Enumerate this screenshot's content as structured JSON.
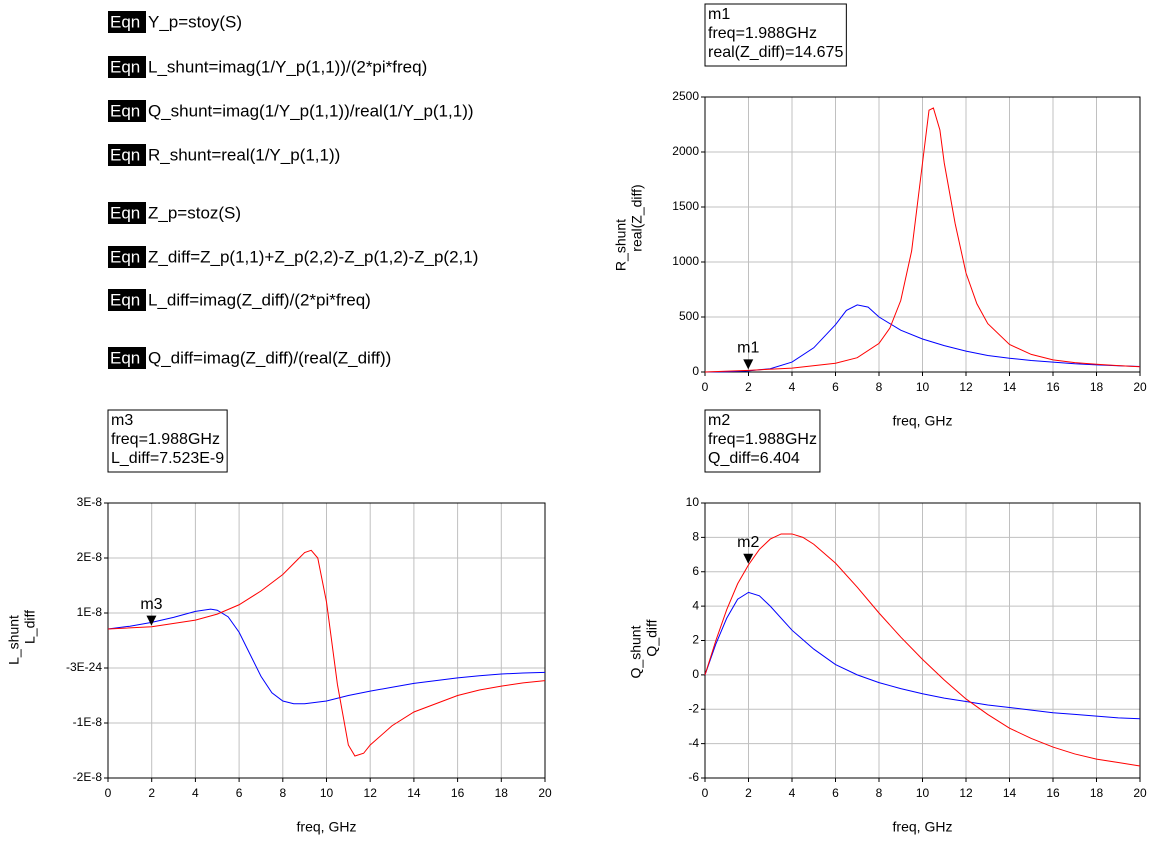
{
  "equations": [
    {
      "tag": "Eqn",
      "text": "Y_p=stoy(S)"
    },
    {
      "tag": "Eqn",
      "text": "L_shunt=imag(1/Y_p(1,1))/(2*pi*freq)"
    },
    {
      "tag": "Eqn",
      "text": "Q_shunt=imag(1/Y_p(1,1))/real(1/Y_p(1,1))"
    },
    {
      "tag": "Eqn",
      "text": "R_shunt=real(1/Y_p(1,1))"
    },
    {
      "tag": "Eqn",
      "text": "Z_p=stoz(S)"
    },
    {
      "tag": "Eqn",
      "text": "Z_diff=Z_p(1,1)+Z_p(2,2)-Z_p(1,2)-Z_p(2,1)"
    },
    {
      "tag": "Eqn",
      "text": "L_diff=imag(Z_diff)/(2*pi*freq)"
    },
    {
      "tag": "Eqn",
      "text": "Q_diff=imag(Z_diff)/(real(Z_diff))"
    }
  ],
  "chart_data": [
    {
      "type": "line",
      "x_label": "freq, GHz",
      "xlim": [
        0,
        20
      ],
      "xticks": [
        0,
        2,
        4,
        6,
        8,
        10,
        12,
        14,
        16,
        18,
        20
      ],
      "ylim": [
        0,
        2500
      ],
      "yticks": [
        0,
        500,
        1000,
        1500,
        2000,
        2500
      ],
      "grid": true,
      "series": [
        {
          "name": "R_shunt",
          "color": "#0000ff",
          "x": [
            0,
            1,
            2,
            3,
            4,
            5,
            6,
            6.5,
            7,
            7.5,
            8,
            9,
            10,
            11,
            12,
            13,
            14,
            15,
            16,
            17,
            18,
            19,
            20
          ],
          "values": [
            0,
            2,
            10,
            30,
            90,
            220,
            430,
            560,
            610,
            590,
            500,
            380,
            300,
            240,
            190,
            150,
            125,
            105,
            90,
            75,
            65,
            57,
            50
          ]
        },
        {
          "name": "real(Z_diff)",
          "color": "#ff0000",
          "x": [
            0,
            2,
            4,
            6,
            7,
            8,
            8.5,
            9,
            9.5,
            10,
            10.3,
            10.5,
            10.8,
            11,
            11.5,
            12,
            12.5,
            13,
            14,
            15,
            16,
            17,
            18,
            19,
            20
          ],
          "values": [
            0,
            15,
            35,
            80,
            130,
            260,
            400,
            650,
            1100,
            1900,
            2380,
            2400,
            2200,
            1900,
            1350,
            900,
            620,
            440,
            250,
            160,
            110,
            85,
            70,
            58,
            48
          ]
        }
      ],
      "marker": {
        "name": "m1",
        "x": 1.988,
        "y": 14.675,
        "readout": [
          "freq=1.988GHz",
          "real(Z_diff)=14.675"
        ]
      }
    },
    {
      "type": "line",
      "x_label": "freq, GHz",
      "xlim": [
        0,
        20
      ],
      "xticks": [
        0,
        2,
        4,
        6,
        8,
        10,
        12,
        14,
        16,
        18,
        20
      ],
      "ylim": [
        -2e-08,
        3e-08
      ],
      "yticks": [
        {
          "value": -2e-08,
          "label": "-2E-8"
        },
        {
          "value": -1e-08,
          "label": "-1E-8"
        },
        {
          "value": -3e-24,
          "label": "-3E-24"
        },
        {
          "value": 1e-08,
          "label": "1E-8"
        },
        {
          "value": 2e-08,
          "label": "2E-8"
        },
        {
          "value": 3e-08,
          "label": "3E-8"
        }
      ],
      "grid": true,
      "series": [
        {
          "name": "L_shunt",
          "color": "#0000ff",
          "x": [
            0,
            1,
            2,
            3,
            4,
            4.7,
            5,
            5.5,
            6,
            6.5,
            7,
            7.5,
            8,
            8.5,
            9,
            10,
            11,
            12,
            13,
            14,
            15,
            16,
            17,
            18,
            19,
            20
          ],
          "values": [
            7.1e-09,
            7.6e-09,
            8.3e-09,
            9.2e-09,
            1.03e-08,
            1.07e-08,
            1.05e-08,
            9.3e-09,
            6.5e-09,
            2.5e-09,
            -1.5e-09,
            -4.5e-09,
            -6e-09,
            -6.5e-09,
            -6.5e-09,
            -6e-09,
            -5e-09,
            -4.2e-09,
            -3.5e-09,
            -2.8e-09,
            -2.3e-09,
            -1.8e-09,
            -1.4e-09,
            -1.1e-09,
            -9e-10,
            -8e-10
          ]
        },
        {
          "name": "L_diff",
          "color": "#ff0000",
          "x": [
            0,
            2,
            4,
            5,
            6,
            7,
            8,
            8.5,
            9,
            9.3,
            9.6,
            10,
            10.5,
            11,
            11.3,
            11.7,
            12,
            13,
            14,
            15,
            16,
            17,
            18,
            19,
            20
          ],
          "values": [
            7.1e-09,
            7.5e-09,
            8.7e-09,
            9.8e-09,
            1.15e-08,
            1.4e-08,
            1.7e-08,
            1.9e-08,
            2.1e-08,
            2.14e-08,
            2e-08,
            1.2e-08,
            -3e-09,
            -1.4e-08,
            -1.6e-08,
            -1.55e-08,
            -1.4e-08,
            -1.05e-08,
            -8e-09,
            -6.5e-09,
            -5e-09,
            -4e-09,
            -3.3e-09,
            -2.7e-09,
            -2.3e-09
          ]
        }
      ],
      "marker": {
        "name": "m3",
        "x": 1.988,
        "y": 7.523e-09,
        "readout": [
          "freq=1.988GHz",
          "L_diff=7.523E-9"
        ]
      }
    },
    {
      "type": "line",
      "x_label": "freq, GHz",
      "xlim": [
        0,
        20
      ],
      "xticks": [
        0,
        2,
        4,
        6,
        8,
        10,
        12,
        14,
        16,
        18,
        20
      ],
      "ylim": [
        -6,
        10
      ],
      "yticks": [
        -6,
        -4,
        -2,
        0,
        2,
        4,
        6,
        8,
        10
      ],
      "grid": true,
      "series": [
        {
          "name": "Q_shunt",
          "color": "#0000ff",
          "x": [
            0,
            0.5,
            1,
            1.5,
            2,
            2.5,
            3,
            4,
            5,
            6,
            7,
            8,
            9,
            10,
            11,
            12,
            13,
            14,
            15,
            16,
            17,
            18,
            19,
            20
          ],
          "values": [
            0,
            1.8,
            3.3,
            4.4,
            4.8,
            4.6,
            4.0,
            2.6,
            1.5,
            0.6,
            0,
            -0.45,
            -0.8,
            -1.1,
            -1.35,
            -1.55,
            -1.75,
            -1.9,
            -2.05,
            -2.2,
            -2.3,
            -2.4,
            -2.5,
            -2.55
          ]
        },
        {
          "name": "Q_diff",
          "color": "#ff0000",
          "x": [
            0,
            0.5,
            1,
            1.5,
            2,
            2.5,
            3,
            3.5,
            4,
            4.5,
            5,
            6,
            7,
            8,
            9,
            10,
            11,
            12,
            13,
            14,
            15,
            16,
            17,
            18,
            19,
            20
          ],
          "values": [
            0,
            2,
            3.8,
            5.3,
            6.4,
            7.3,
            7.9,
            8.2,
            8.2,
            8.0,
            7.6,
            6.5,
            5.1,
            3.6,
            2.2,
            0.9,
            -0.3,
            -1.4,
            -2.3,
            -3.1,
            -3.7,
            -4.2,
            -4.6,
            -4.9,
            -5.1,
            -5.3
          ]
        }
      ],
      "marker": {
        "name": "m2",
        "x": 1.988,
        "y": 6.404,
        "readout": [
          "freq=1.988GHz",
          "Q_diff=6.404"
        ]
      }
    }
  ]
}
